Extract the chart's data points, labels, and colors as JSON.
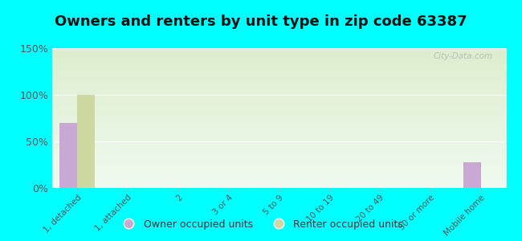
{
  "title": "Owners and renters by unit type in zip code 63387",
  "categories": [
    "1, detached",
    "1, attached",
    "2",
    "3 or 4",
    "5 to 9",
    "10 to 19",
    "20 to 49",
    "50 or more",
    "Mobile home"
  ],
  "owner_values": [
    70,
    0,
    0,
    0,
    0,
    0,
    0,
    0,
    28
  ],
  "renter_values": [
    100,
    0,
    0,
    0,
    0,
    0,
    0,
    0,
    0
  ],
  "owner_color": "#c9a8d4",
  "renter_color": "#cdd9a0",
  "background_color": "#00ffff",
  "plot_bg_top": "#ddeece",
  "plot_bg_bottom": "#f0faf0",
  "ylim": [
    0,
    150
  ],
  "yticks": [
    0,
    50,
    100,
    150
  ],
  "bar_width": 0.35,
  "title_fontsize": 13,
  "watermark": "City-Data.com",
  "legend_owner": "Owner occupied units",
  "legend_renter": "Renter occupied units"
}
